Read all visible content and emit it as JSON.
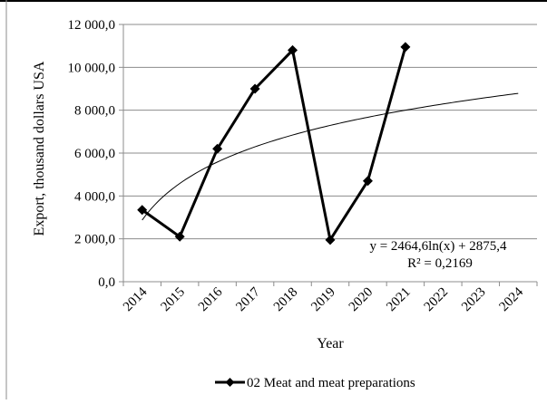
{
  "chart_data": {
    "type": "line",
    "title": "",
    "xlabel": "Year",
    "ylabel": "Export, thousand dollars USA",
    "categories": [
      "2014",
      "2015",
      "2016",
      "2017",
      "2018",
      "2019",
      "2020",
      "2021",
      "2022",
      "2023",
      "2024"
    ],
    "ylim": [
      0,
      12000
    ],
    "y_ticks": [
      "0,0",
      "2 000,0",
      "4 000,0",
      "6 000,0",
      "8 000,0",
      "10 000,0",
      "12 000,0"
    ],
    "y_tick_values": [
      0,
      2000,
      4000,
      6000,
      8000,
      10000,
      12000
    ],
    "grid": "horizontal",
    "legend_position": "bottom",
    "series": [
      {
        "name": "02 Meat and meat preparations",
        "x": [
          "2014",
          "2015",
          "2016",
          "2017",
          "2018",
          "2019",
          "2020",
          "2021"
        ],
        "values": [
          3350,
          2100,
          6200,
          9000,
          10800,
          1950,
          4700,
          10950
        ],
        "color": "#000000",
        "marker": "diamond"
      }
    ],
    "trendline": {
      "type": "logarithmic",
      "a": 2464.6,
      "b": 2875.4,
      "x_from": 1,
      "x_to": 11,
      "equation_label": "y = 2464,6ln(x) + 2875,4",
      "r2_label": "R² = 0,2169",
      "color": "#000000"
    }
  }
}
